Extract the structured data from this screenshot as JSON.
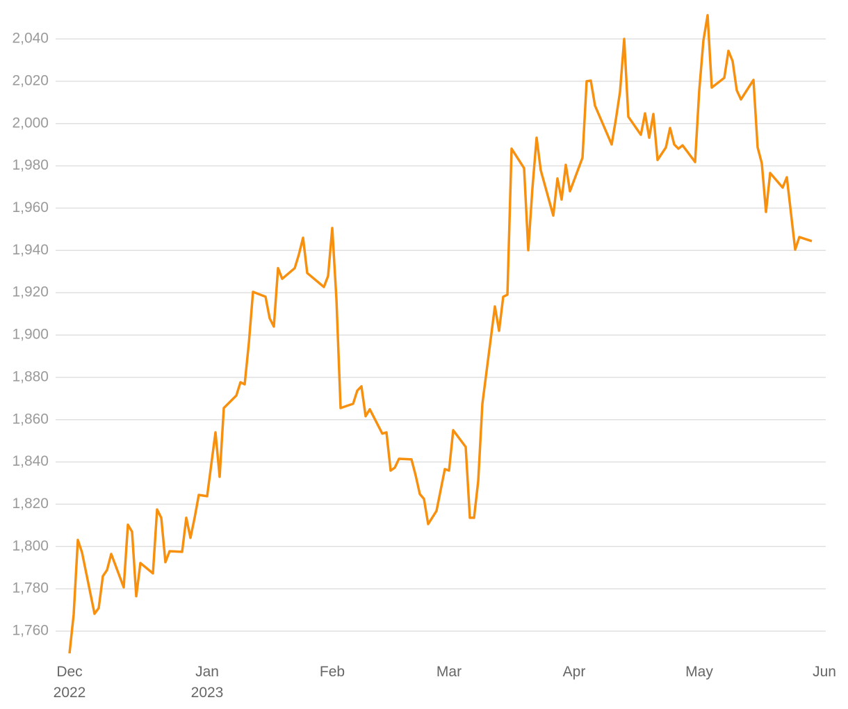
{
  "chart_data": {
    "type": "line",
    "x": [
      0,
      1,
      2,
      3,
      6,
      7,
      8,
      9,
      10,
      13,
      14,
      15,
      16,
      17,
      20,
      21,
      22,
      23,
      24,
      27,
      28,
      29,
      30,
      31,
      33,
      35,
      36,
      37,
      40,
      41,
      42,
      43,
      44,
      47,
      48,
      49,
      50,
      51,
      54,
      55,
      56,
      57,
      61,
      62,
      63,
      64,
      65,
      68,
      69,
      70,
      71,
      72,
      75,
      76,
      77,
      78,
      79,
      82,
      83,
      84,
      85,
      86,
      88,
      90,
      91,
      92,
      95,
      96,
      97,
      98,
      99,
      102,
      103,
      104,
      105,
      106,
      109,
      110,
      111,
      112,
      113,
      116,
      117,
      118,
      119,
      120,
      123,
      124,
      125,
      126,
      130,
      131,
      132,
      133,
      134,
      137,
      138,
      139,
      140,
      141,
      143,
      144,
      145,
      146,
      147,
      150,
      151,
      152,
      153,
      154,
      157,
      158,
      159,
      160,
      161,
      164,
      165,
      166,
      167,
      168,
      171,
      172,
      174,
      175,
      178
    ],
    "series": [
      {
        "color": "#f7900f",
        "values": [
          1749.5,
          1767.9,
          1803.1,
          1797.2,
          1768.2,
          1770.9,
          1786.0,
          1788.9,
          1796.5,
          1780.7,
          1810.3,
          1807.0,
          1776.5,
          1792.2,
          1787.3,
          1817.5,
          1813.6,
          1792.6,
          1797.8,
          1797.5,
          1813.6,
          1804.1,
          1813.6,
          1824.4,
          1823.8,
          1854.0,
          1833.0,
          1865.5,
          1871.4,
          1877.7,
          1876.7,
          1896.1,
          1920.4,
          1918.1,
          1907.9,
          1904.0,
          1931.6,
          1926.6,
          1931.6,
          1938.1,
          1946.0,
          1929.3,
          1922.7,
          1927.9,
          1950.6,
          1917.1,
          1865.5,
          1867.5,
          1873.7,
          1875.7,
          1861.6,
          1864.9,
          1853.4,
          1854.0,
          1835.9,
          1837.3,
          1841.5,
          1841.2,
          1833.6,
          1824.8,
          1822.5,
          1810.6,
          1816.9,
          1836.6,
          1835.9,
          1855.0,
          1847.1,
          1813.6,
          1813.6,
          1831.0,
          1867.5,
          1913.5,
          1902.0,
          1918.1,
          1919.1,
          1988.1,
          1978.9,
          1940.1,
          1969.4,
          1993.3,
          1977.9,
          1956.5,
          1974.0,
          1964.1,
          1980.5,
          1968.0,
          1983.8,
          2020.0,
          2020.3,
          2008.5,
          1990.1,
          2001.9,
          2015.0,
          2040.0,
          2003.2,
          1994.7,
          2004.8,
          1993.3,
          2004.5,
          1982.8,
          1988.7,
          1997.9,
          1990.1,
          1988.1,
          1989.7,
          1981.8,
          2015.7,
          2039.3,
          2051.2,
          2017.0,
          2021.6,
          2034.4,
          2029.5,
          2015.7,
          2011.4,
          2020.6,
          1988.7,
          1981.2,
          1958.2,
          1976.6,
          1969.7,
          1974.6,
          1940.4,
          1946.3,
          1944.4
        ]
      }
    ],
    "xlim": [
      -3,
      182
    ],
    "xticks": [
      {
        "value": 0,
        "label": "Dec\n2022"
      },
      {
        "value": 33,
        "label": "Jan\n2023"
      },
      {
        "value": 63,
        "label": "Feb"
      },
      {
        "value": 91,
        "label": "Mar"
      },
      {
        "value": 121,
        "label": "Apr"
      },
      {
        "value": 151,
        "label": "May"
      },
      {
        "value": 181,
        "label": "Jun"
      }
    ],
    "ylim": [
      1748,
      2052
    ],
    "yticks": [
      {
        "value": 1760,
        "label": "1,760"
      },
      {
        "value": 1780,
        "label": "1,780"
      },
      {
        "value": 1800,
        "label": "1,800"
      },
      {
        "value": 1820,
        "label": "1,820"
      },
      {
        "value": 1840,
        "label": "1,840"
      },
      {
        "value": 1860,
        "label": "1,860"
      },
      {
        "value": 1880,
        "label": "1,880"
      },
      {
        "value": 1900,
        "label": "1,900"
      },
      {
        "value": 1920,
        "label": "1,920"
      },
      {
        "value": 1940,
        "label": "1,940"
      },
      {
        "value": 1960,
        "label": "1,960"
      },
      {
        "value": 1980,
        "label": "1,980"
      },
      {
        "value": 2000,
        "label": "2,000"
      },
      {
        "value": 2020,
        "label": "2,020"
      },
      {
        "value": 2040,
        "label": "2,040"
      }
    ],
    "grid": true
  }
}
